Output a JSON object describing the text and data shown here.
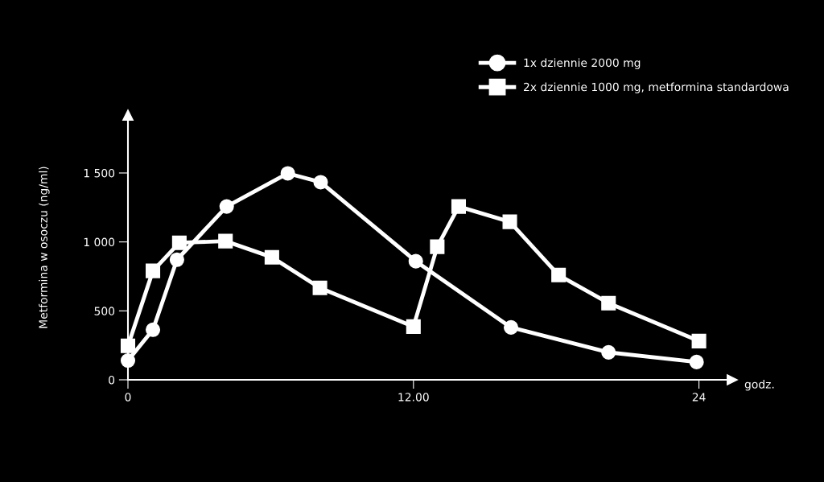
{
  "chart_data": {
    "type": "line",
    "ylabel": "Metformina w osoczu (ng/ml)",
    "xlabel": "godz.",
    "xlim": [
      0,
      25.4
    ],
    "ylim": [
      0,
      1920
    ],
    "xticks": [
      0,
      {
        "value": 12,
        "label": "12.00"
      },
      24
    ],
    "yticks": [
      0,
      500,
      {
        "value": 1000,
        "label": "1 000"
      },
      {
        "value": 1500,
        "label": "1 500"
      }
    ],
    "grid": false,
    "legend": "top right",
    "series": [
      {
        "name": "1x dziennie 2000 mg",
        "color": "#ffffff",
        "marker": "circle",
        "x": [
          0,
          1.05,
          2.06,
          4.15,
          6.72,
          8.1,
          12.1,
          16.1,
          20.2,
          23.9
        ],
        "values": [
          140,
          363,
          871,
          1257,
          1497,
          1433,
          860,
          380,
          199,
          129
        ]
      },
      {
        "name": "2x dziennie 1000 mg, metformina standardowa",
        "color": "#ffffff",
        "marker": "square",
        "x": [
          0,
          1.05,
          2.16,
          4.1,
          6.05,
          8.07,
          12.0,
          13.0,
          13.9,
          16.05,
          18.1,
          20.2,
          24.0
        ],
        "values": [
          246,
          790,
          994,
          1006,
          889,
          667,
          386,
          965,
          1257,
          1146,
          760,
          556,
          281
        ]
      }
    ]
  }
}
